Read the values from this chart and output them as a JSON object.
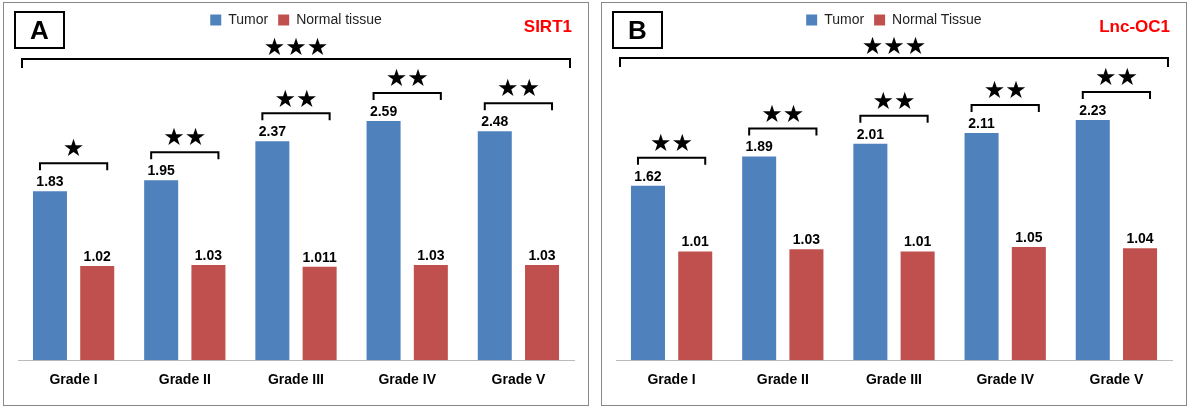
{
  "chart_data": [
    {
      "type": "bar",
      "title": "SIRT1",
      "categories": [
        "Grade I",
        "Grade II",
        "Grade III",
        "Grade IV",
        "Grade V"
      ],
      "legend": "top",
      "data_labels": true,
      "tick_labels": "x",
      "grid": false,
      "series": [
        {
          "name": "Tumor",
          "color": "#4f81bd",
          "values": [
            1.83,
            1.95,
            2.37,
            2.59,
            2.48
          ]
        },
        {
          "name": "Normal tissue",
          "color": "#c0504d",
          "values": [
            1.02,
            1.03,
            1.011,
            1.03,
            1.03
          ]
        }
      ],
      "annotations": [
        "A",
        "★★★",
        "★",
        "★★",
        "★★",
        "★★",
        "★★"
      ]
    },
    {
      "type": "bar",
      "title": "Lnc-OC1",
      "categories": [
        "Grade I",
        "Grade II",
        "Grade III",
        "Grade IV",
        "Grade V"
      ],
      "legend": "top",
      "data_labels": true,
      "tick_labels": "x",
      "grid": false,
      "series": [
        {
          "name": "Tumor",
          "color": "#4f81bd",
          "values": [
            1.62,
            1.89,
            2.01,
            2.11,
            2.23
          ]
        },
        {
          "name": "Normal Tissue",
          "color": "#c0504d",
          "values": [
            1.01,
            1.03,
            1.01,
            1.05,
            1.04
          ]
        }
      ],
      "annotations": [
        "B",
        "★★★",
        "★★",
        "★★",
        "★★",
        "★★",
        "★★"
      ]
    }
  ]
}
